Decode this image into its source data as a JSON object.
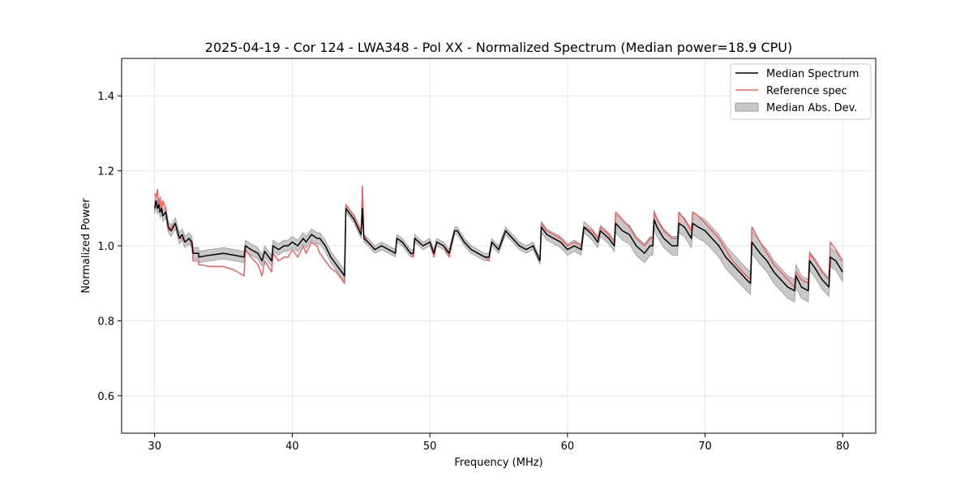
{
  "chart_data": {
    "type": "line",
    "title": "2025-04-19 - Cor 124 - LWA348 - Pol XX - Normalized Spectrum (Median power=18.9 CPU)",
    "xlabel": "Frequency (MHz)",
    "ylabel": "Normalized Power",
    "xlim": [
      27.6,
      82.4
    ],
    "ylim": [
      0.5,
      1.5
    ],
    "xticks": [
      30,
      40,
      50,
      60,
      70,
      80
    ],
    "yticks": [
      0.6,
      0.8,
      1.0,
      1.2,
      1.4
    ],
    "xtick_labels": [
      "30",
      "40",
      "50",
      "60",
      "70",
      "80"
    ],
    "ytick_labels": [
      "0.6",
      "0.8",
      "1.0",
      "1.2",
      "1.4"
    ],
    "grid": true,
    "legend_position": "top-right",
    "legend": {
      "median": "Median Spectrum",
      "reference": "Reference spec",
      "mad": "Median Abs. Dev."
    },
    "colors": {
      "median": "#000000",
      "reference": "#f06060",
      "mad_fill": "#c8c8c8",
      "mad_edge": "#9a9a9a",
      "grid": "#e6e6e6"
    },
    "series": [
      {
        "name": "Median Spectrum",
        "x": [
          30.0,
          30.1,
          30.2,
          30.3,
          30.4,
          30.5,
          30.6,
          30.8,
          31.0,
          31.2,
          31.5,
          31.8,
          32.0,
          32.2,
          32.5,
          32.7,
          32.8,
          33.2,
          33.2,
          34.0,
          35.0,
          35.8,
          36.5,
          36.6,
          37.0,
          37.5,
          37.8,
          38.0,
          38.5,
          38.6,
          39.0,
          39.4,
          39.7,
          40.0,
          40.4,
          40.8,
          41.0,
          41.4,
          41.8,
          42.0,
          42.4,
          42.8,
          43.2,
          43.8,
          43.9,
          44.5,
          45.0,
          45.1,
          45.2,
          45.5,
          46.0,
          46.5,
          47.0,
          47.5,
          47.6,
          48.0,
          48.6,
          48.8,
          48.9,
          49.5,
          50.0,
          50.3,
          50.5,
          51.0,
          51.4,
          51.8,
          52.0,
          52.5,
          53.0,
          53.5,
          54.0,
          54.3,
          54.5,
          55.0,
          55.5,
          56.0,
          56.5,
          57.0,
          57.5,
          58.0,
          58.1,
          58.5,
          59.0,
          59.5,
          60.0,
          60.5,
          61.0,
          61.2,
          61.8,
          62.2,
          62.4,
          63.0,
          63.4,
          63.5,
          64.0,
          64.5,
          65.0,
          65.6,
          66.0,
          66.2,
          66.3,
          66.5,
          67.0,
          67.6,
          68.0,
          68.1,
          68.5,
          69.0,
          69.1,
          69.5,
          70.0,
          70.5,
          71.0,
          71.5,
          72.0,
          72.5,
          73.0,
          73.3,
          73.4,
          74.0,
          74.5,
          75.0,
          75.5,
          76.0,
          76.5,
          76.6,
          77.0,
          77.5,
          77.6,
          78.0,
          78.5,
          79.0,
          79.1,
          79.5,
          80.0
        ],
        "values": [
          1.1,
          1.12,
          1.1,
          1.11,
          1.09,
          1.1,
          1.08,
          1.09,
          1.05,
          1.04,
          1.06,
          1.02,
          1.03,
          1.01,
          1.02,
          1.01,
          0.98,
          0.98,
          0.97,
          0.975,
          0.98,
          0.975,
          0.97,
          1.0,
          0.99,
          0.98,
          0.96,
          0.985,
          0.96,
          1.0,
          0.99,
          1.0,
          1.0,
          1.01,
          1.0,
          1.02,
          1.01,
          1.03,
          1.02,
          1.02,
          1.0,
          0.97,
          0.95,
          0.92,
          1.1,
          1.07,
          1.03,
          1.1,
          1.02,
          1.01,
          0.99,
          1.0,
          0.99,
          0.98,
          1.02,
          1.01,
          0.98,
          0.98,
          1.02,
          1.0,
          1.01,
          0.98,
          1.01,
          1.0,
          0.98,
          1.04,
          1.04,
          1.01,
          0.99,
          0.98,
          0.97,
          0.97,
          1.01,
          0.99,
          1.04,
          1.02,
          1.0,
          0.99,
          1.0,
          0.96,
          1.05,
          1.03,
          1.02,
          1.01,
          0.99,
          1.0,
          0.99,
          1.05,
          1.03,
          1.01,
          1.04,
          1.02,
          1.0,
          1.06,
          1.04,
          1.03,
          1.0,
          0.98,
          1.0,
          1.0,
          1.07,
          1.05,
          1.02,
          1.0,
          1.0,
          1.06,
          1.05,
          1.02,
          1.06,
          1.05,
          1.04,
          1.02,
          1.0,
          0.97,
          0.95,
          0.93,
          0.91,
          0.9,
          1.01,
          0.98,
          0.96,
          0.93,
          0.91,
          0.89,
          0.88,
          0.92,
          0.89,
          0.88,
          0.96,
          0.94,
          0.91,
          0.89,
          0.97,
          0.96,
          0.93
        ]
      },
      {
        "name": "Reference spec",
        "x": [
          30.0,
          30.1,
          30.2,
          30.3,
          30.4,
          30.5,
          30.6,
          30.8,
          31.0,
          31.2,
          31.5,
          31.8,
          32.0,
          32.2,
          32.5,
          32.7,
          32.8,
          33.2,
          33.2,
          34.0,
          35.0,
          35.8,
          36.5,
          36.6,
          37.0,
          37.5,
          37.8,
          38.0,
          38.5,
          38.6,
          39.0,
          39.4,
          39.7,
          40.0,
          40.4,
          40.8,
          41.0,
          41.4,
          41.8,
          42.0,
          42.4,
          42.8,
          43.2,
          43.8,
          43.9,
          44.5,
          45.0,
          45.1,
          45.2,
          45.5,
          46.0,
          46.5,
          47.0,
          47.5,
          47.6,
          48.0,
          48.6,
          48.8,
          48.9,
          49.5,
          50.0,
          50.3,
          50.5,
          51.0,
          51.4,
          51.8,
          52.0,
          52.5,
          53.0,
          53.5,
          54.0,
          54.3,
          54.5,
          55.0,
          55.5,
          56.0,
          56.5,
          57.0,
          57.5,
          58.0,
          58.1,
          58.5,
          59.0,
          59.5,
          60.0,
          60.5,
          61.0,
          61.2,
          61.8,
          62.2,
          62.4,
          63.0,
          63.4,
          63.5,
          64.0,
          64.5,
          65.0,
          65.6,
          66.0,
          66.2,
          66.3,
          66.5,
          67.0,
          67.6,
          68.0,
          68.1,
          68.5,
          69.0,
          69.1,
          69.5,
          70.0,
          70.5,
          71.0,
          71.5,
          72.0,
          72.5,
          73.0,
          73.3,
          73.4,
          74.0,
          74.5,
          75.0,
          75.5,
          76.0,
          76.5,
          76.6,
          77.0,
          77.5,
          77.6,
          78.0,
          78.5,
          79.0,
          79.1,
          79.5,
          80.0
        ],
        "values": [
          1.14,
          1.13,
          1.15,
          1.1,
          1.13,
          1.09,
          1.12,
          1.1,
          1.04,
          1.05,
          1.06,
          1.02,
          1.02,
          1.01,
          1.02,
          1.0,
          0.96,
          0.96,
          0.95,
          0.945,
          0.945,
          0.935,
          0.92,
          0.99,
          0.97,
          0.95,
          0.92,
          0.96,
          0.93,
          0.98,
          0.96,
          0.97,
          0.97,
          0.99,
          0.97,
          1.0,
          0.98,
          1.01,
          1.0,
          0.98,
          0.96,
          0.94,
          0.93,
          0.9,
          1.11,
          1.08,
          1.04,
          1.16,
          1.03,
          1.01,
          0.99,
          1.0,
          0.99,
          0.98,
          1.02,
          1.01,
          0.98,
          0.97,
          1.02,
          1.0,
          1.01,
          0.97,
          1.01,
          1.0,
          0.97,
          1.04,
          1.04,
          1.01,
          0.99,
          0.98,
          0.97,
          0.96,
          1.01,
          0.99,
          1.04,
          1.02,
          1.0,
          0.99,
          1.0,
          0.96,
          1.06,
          1.04,
          1.03,
          1.02,
          1.0,
          1.01,
          1.0,
          1.05,
          1.04,
          1.02,
          1.05,
          1.03,
          1.01,
          1.09,
          1.07,
          1.05,
          1.02,
          1.0,
          1.02,
          1.02,
          1.09,
          1.07,
          1.04,
          1.02,
          1.02,
          1.09,
          1.07,
          1.04,
          1.09,
          1.08,
          1.06,
          1.04,
          1.02,
          0.99,
          0.96,
          0.94,
          0.92,
          0.91,
          1.05,
          1.01,
          0.98,
          0.95,
          0.93,
          0.91,
          0.89,
          0.93,
          0.91,
          0.9,
          0.98,
          0.96,
          0.93,
          0.91,
          1.01,
          0.99,
          0.96
        ]
      },
      {
        "name": "Median Abs. Dev.",
        "x": [
          30.0,
          30.1,
          30.2,
          30.3,
          30.4,
          30.5,
          30.6,
          30.8,
          31.0,
          31.2,
          31.5,
          31.8,
          32.0,
          32.2,
          32.5,
          32.7,
          32.8,
          33.2,
          33.2,
          34.0,
          35.0,
          35.8,
          36.5,
          36.6,
          37.0,
          37.5,
          37.8,
          38.0,
          38.5,
          38.6,
          39.0,
          39.4,
          39.7,
          40.0,
          40.4,
          40.8,
          41.0,
          41.4,
          41.8,
          42.0,
          42.4,
          42.8,
          43.2,
          43.8,
          43.9,
          44.5,
          45.0,
          45.1,
          45.2,
          45.5,
          46.0,
          46.5,
          47.0,
          47.5,
          47.6,
          48.0,
          48.6,
          48.8,
          48.9,
          49.5,
          50.0,
          50.3,
          50.5,
          51.0,
          51.4,
          51.8,
          52.0,
          52.5,
          53.0,
          53.5,
          54.0,
          54.3,
          54.5,
          55.0,
          55.5,
          56.0,
          56.5,
          57.0,
          57.5,
          58.0,
          58.1,
          58.5,
          59.0,
          59.5,
          60.0,
          60.5,
          61.0,
          61.2,
          61.8,
          62.2,
          62.4,
          63.0,
          63.4,
          63.5,
          64.0,
          64.5,
          65.0,
          65.6,
          66.0,
          66.2,
          66.3,
          66.5,
          67.0,
          67.6,
          68.0,
          68.1,
          68.5,
          69.0,
          69.1,
          69.5,
          70.0,
          70.5,
          71.0,
          71.5,
          72.0,
          72.5,
          73.0,
          73.3,
          73.4,
          74.0,
          74.5,
          75.0,
          75.5,
          76.0,
          76.5,
          76.6,
          77.0,
          77.5,
          77.6,
          78.0,
          78.5,
          79.0,
          79.1,
          79.5,
          80.0
        ],
        "upper": [
          1.115,
          1.135,
          1.115,
          1.125,
          1.105,
          1.115,
          1.095,
          1.105,
          1.065,
          1.055,
          1.075,
          1.035,
          1.045,
          1.025,
          1.035,
          1.025,
          0.995,
          0.995,
          0.985,
          0.99,
          0.995,
          0.99,
          0.985,
          1.015,
          1.005,
          0.995,
          0.975,
          1.0,
          0.975,
          1.015,
          1.005,
          1.015,
          1.015,
          1.025,
          1.015,
          1.035,
          1.025,
          1.045,
          1.035,
          1.035,
          1.015,
          0.985,
          0.965,
          0.935,
          1.11,
          1.08,
          1.04,
          1.11,
          1.03,
          1.02,
          1.0,
          1.01,
          1.0,
          0.99,
          1.03,
          1.02,
          0.99,
          0.99,
          1.03,
          1.01,
          1.02,
          0.99,
          1.02,
          1.01,
          0.99,
          1.05,
          1.05,
          1.02,
          1.0,
          0.99,
          0.98,
          0.98,
          1.02,
          1.0,
          1.05,
          1.03,
          1.01,
          1.0,
          1.01,
          0.97,
          1.065,
          1.045,
          1.035,
          1.025,
          1.005,
          1.015,
          1.005,
          1.065,
          1.045,
          1.025,
          1.055,
          1.035,
          1.015,
          1.085,
          1.065,
          1.055,
          1.025,
          1.005,
          1.025,
          1.025,
          1.095,
          1.075,
          1.045,
          1.025,
          1.025,
          1.085,
          1.075,
          1.045,
          1.09,
          1.08,
          1.07,
          1.05,
          1.03,
          1.0,
          0.98,
          0.96,
          0.94,
          0.93,
          1.04,
          1.01,
          0.99,
          0.96,
          0.94,
          0.92,
          0.91,
          0.95,
          0.92,
          0.91,
          0.985,
          0.965,
          0.935,
          0.915,
          0.995,
          0.985,
          0.955
        ],
        "lower": [
          1.085,
          1.105,
          1.085,
          1.095,
          1.075,
          1.085,
          1.065,
          1.075,
          1.035,
          1.025,
          1.045,
          1.005,
          1.015,
          0.995,
          1.005,
          0.995,
          0.965,
          0.965,
          0.955,
          0.96,
          0.965,
          0.96,
          0.955,
          0.985,
          0.975,
          0.965,
          0.945,
          0.97,
          0.945,
          0.985,
          0.975,
          0.985,
          0.985,
          0.995,
          0.985,
          1.005,
          0.995,
          1.015,
          1.005,
          1.005,
          0.985,
          0.955,
          0.935,
          0.905,
          1.09,
          1.06,
          1.02,
          1.09,
          1.01,
          1.0,
          0.98,
          0.99,
          0.98,
          0.97,
          1.01,
          1.0,
          0.97,
          0.97,
          1.01,
          0.99,
          1.0,
          0.97,
          1.0,
          0.99,
          0.97,
          1.03,
          1.03,
          1.0,
          0.98,
          0.97,
          0.96,
          0.96,
          1.0,
          0.98,
          1.03,
          1.01,
          0.99,
          0.98,
          0.99,
          0.95,
          1.035,
          1.015,
          1.005,
          0.995,
          0.975,
          0.985,
          0.975,
          1.035,
          1.015,
          0.995,
          1.025,
          1.005,
          0.985,
          1.035,
          1.015,
          1.005,
          0.975,
          0.955,
          0.975,
          0.975,
          1.045,
          1.025,
          0.995,
          0.975,
          0.975,
          1.035,
          1.025,
          0.995,
          1.03,
          1.02,
          1.01,
          0.99,
          0.97,
          0.94,
          0.92,
          0.9,
          0.88,
          0.87,
          0.98,
          0.95,
          0.93,
          0.9,
          0.88,
          0.86,
          0.85,
          0.89,
          0.86,
          0.85,
          0.935,
          0.915,
          0.885,
          0.865,
          0.945,
          0.935,
          0.905
        ]
      }
    ]
  }
}
